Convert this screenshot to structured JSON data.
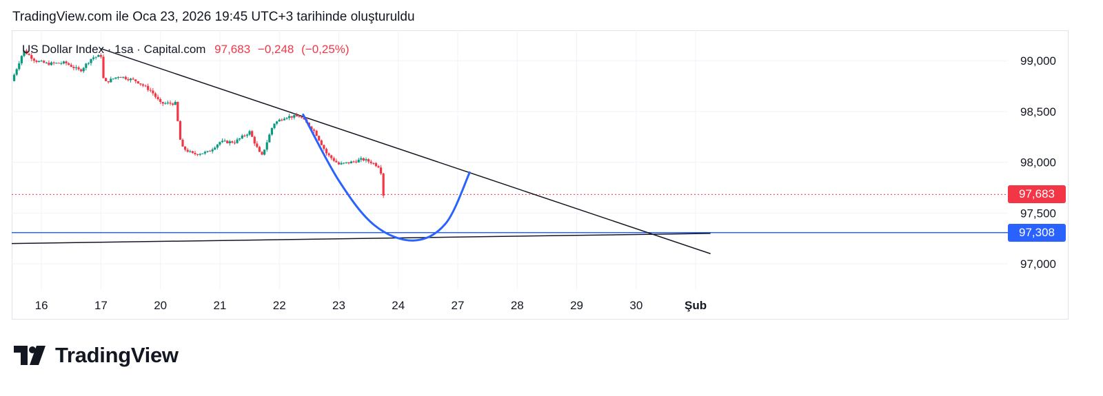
{
  "caption": "TradingView.com ile Oca 23, 2026 19:45 UTC+3 tarihinde oluşturuldu",
  "legend": {
    "symbol": "US Dollar Index · 1sa · Capital.com",
    "last": "97,683",
    "change": "−0,248",
    "change_pct": "(−0,25%)"
  },
  "price_tags": [
    {
      "value": 97.683,
      "label": "97,683",
      "color": "#f23645"
    },
    {
      "value": 97.308,
      "label": "97,308",
      "color": "#2962ff"
    }
  ],
  "brand": "TradingView",
  "colors": {
    "up": "#089981",
    "down": "#f23645",
    "trend": "#131722",
    "curve": "#2962ff"
  },
  "chart_data": {
    "type": "candlestick",
    "ylim": [
      96.75,
      99.3
    ],
    "xlim": [
      15.5,
      32.25
    ],
    "y_ticks": [
      {
        "value": 99.0,
        "label": "99,000"
      },
      {
        "value": 98.5,
        "label": "98,500"
      },
      {
        "value": 98.0,
        "label": "98,000"
      },
      {
        "value": 97.5,
        "label": "97,500"
      },
      {
        "value": 97.0,
        "label": "97,000"
      }
    ],
    "x_ticks": [
      {
        "x": 16,
        "label": "16"
      },
      {
        "x": 17,
        "label": "17"
      },
      {
        "x": 18,
        "label": "20"
      },
      {
        "x": 19,
        "label": "21"
      },
      {
        "x": 20,
        "label": "22"
      },
      {
        "x": 21,
        "label": "23"
      },
      {
        "x": 22,
        "label": "24"
      },
      {
        "x": 23,
        "label": "27"
      },
      {
        "x": 24,
        "label": "28"
      },
      {
        "x": 25,
        "label": "29"
      },
      {
        "x": 26,
        "label": "30"
      },
      {
        "x": 27,
        "label": "Şub"
      }
    ],
    "anchors": [
      {
        "x": 15.5,
        "y": 98.8
      },
      {
        "x": 15.7,
        "y": 99.1
      },
      {
        "x": 15.9,
        "y": 99.0
      },
      {
        "x": 16.1,
        "y": 98.97
      },
      {
        "x": 16.4,
        "y": 98.98
      },
      {
        "x": 16.65,
        "y": 98.9
      },
      {
        "x": 16.85,
        "y": 99.03
      },
      {
        "x": 17.0,
        "y": 99.05
      },
      {
        "x": 17.05,
        "y": 98.78
      },
      {
        "x": 17.3,
        "y": 98.85
      },
      {
        "x": 17.6,
        "y": 98.8
      },
      {
        "x": 17.85,
        "y": 98.7
      },
      {
        "x": 18.0,
        "y": 98.58
      },
      {
        "x": 18.25,
        "y": 98.58
      },
      {
        "x": 18.35,
        "y": 98.15
      },
      {
        "x": 18.55,
        "y": 98.08
      },
      {
        "x": 18.8,
        "y": 98.1
      },
      {
        "x": 19.0,
        "y": 98.2
      },
      {
        "x": 19.25,
        "y": 98.2
      },
      {
        "x": 19.5,
        "y": 98.3
      },
      {
        "x": 19.7,
        "y": 98.05
      },
      {
        "x": 19.9,
        "y": 98.38
      },
      {
        "x": 20.1,
        "y": 98.45
      },
      {
        "x": 20.35,
        "y": 98.45
      },
      {
        "x": 20.6,
        "y": 98.3
      },
      {
        "x": 20.8,
        "y": 98.08
      },
      {
        "x": 21.0,
        "y": 97.98
      },
      {
        "x": 21.2,
        "y": 98.0
      },
      {
        "x": 21.4,
        "y": 98.03
      },
      {
        "x": 21.55,
        "y": 98.0
      },
      {
        "x": 21.7,
        "y": 97.95
      },
      {
        "x": 21.75,
        "y": 97.68
      }
    ],
    "trendlines": [
      {
        "x1": 17.0,
        "y1": 99.12,
        "x2": 27.25,
        "y2": 97.1
      },
      {
        "x1": 15.5,
        "y1": 97.2,
        "x2": 27.25,
        "y2": 97.3
      }
    ],
    "hlines": [
      {
        "y": 97.308,
        "style": "solid"
      },
      {
        "y": 97.683,
        "style": "dotted"
      }
    ],
    "projection_curve": [
      {
        "x": 20.4,
        "y": 98.47
      },
      {
        "x": 21.0,
        "y": 97.82
      },
      {
        "x": 21.6,
        "y": 97.38
      },
      {
        "x": 22.25,
        "y": 97.23
      },
      {
        "x": 22.8,
        "y": 97.4
      },
      {
        "x": 23.2,
        "y": 97.9
      }
    ]
  }
}
